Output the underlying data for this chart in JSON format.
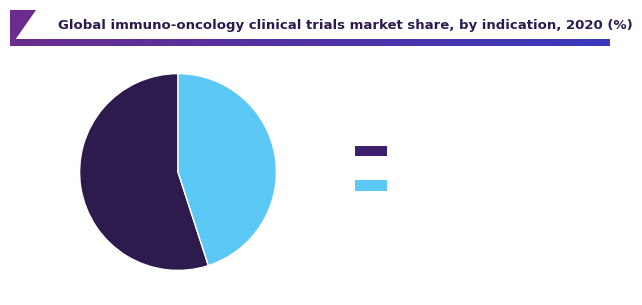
{
  "title": "Global immuno-oncology clinical trials market share, by indication, 2020 (%)",
  "title_color": "#2d1b4e",
  "title_fontsize": 9.5,
  "background_color": "#ffffff",
  "slices": [
    55.0,
    45.0
  ],
  "slice_colors": [
    "#2d1b4e",
    "#5bc8f5"
  ],
  "slice_order": [
    "dark_purple",
    "light_blue"
  ],
  "legend_colors": [
    "#3d1f6e",
    "#5bc8f5"
  ],
  "startangle": 90,
  "accent_bar_color_left": "#6a2d8f",
  "accent_bar_color_right": "#3a3a9a",
  "accent_triangle_color": "#6a2d8f"
}
